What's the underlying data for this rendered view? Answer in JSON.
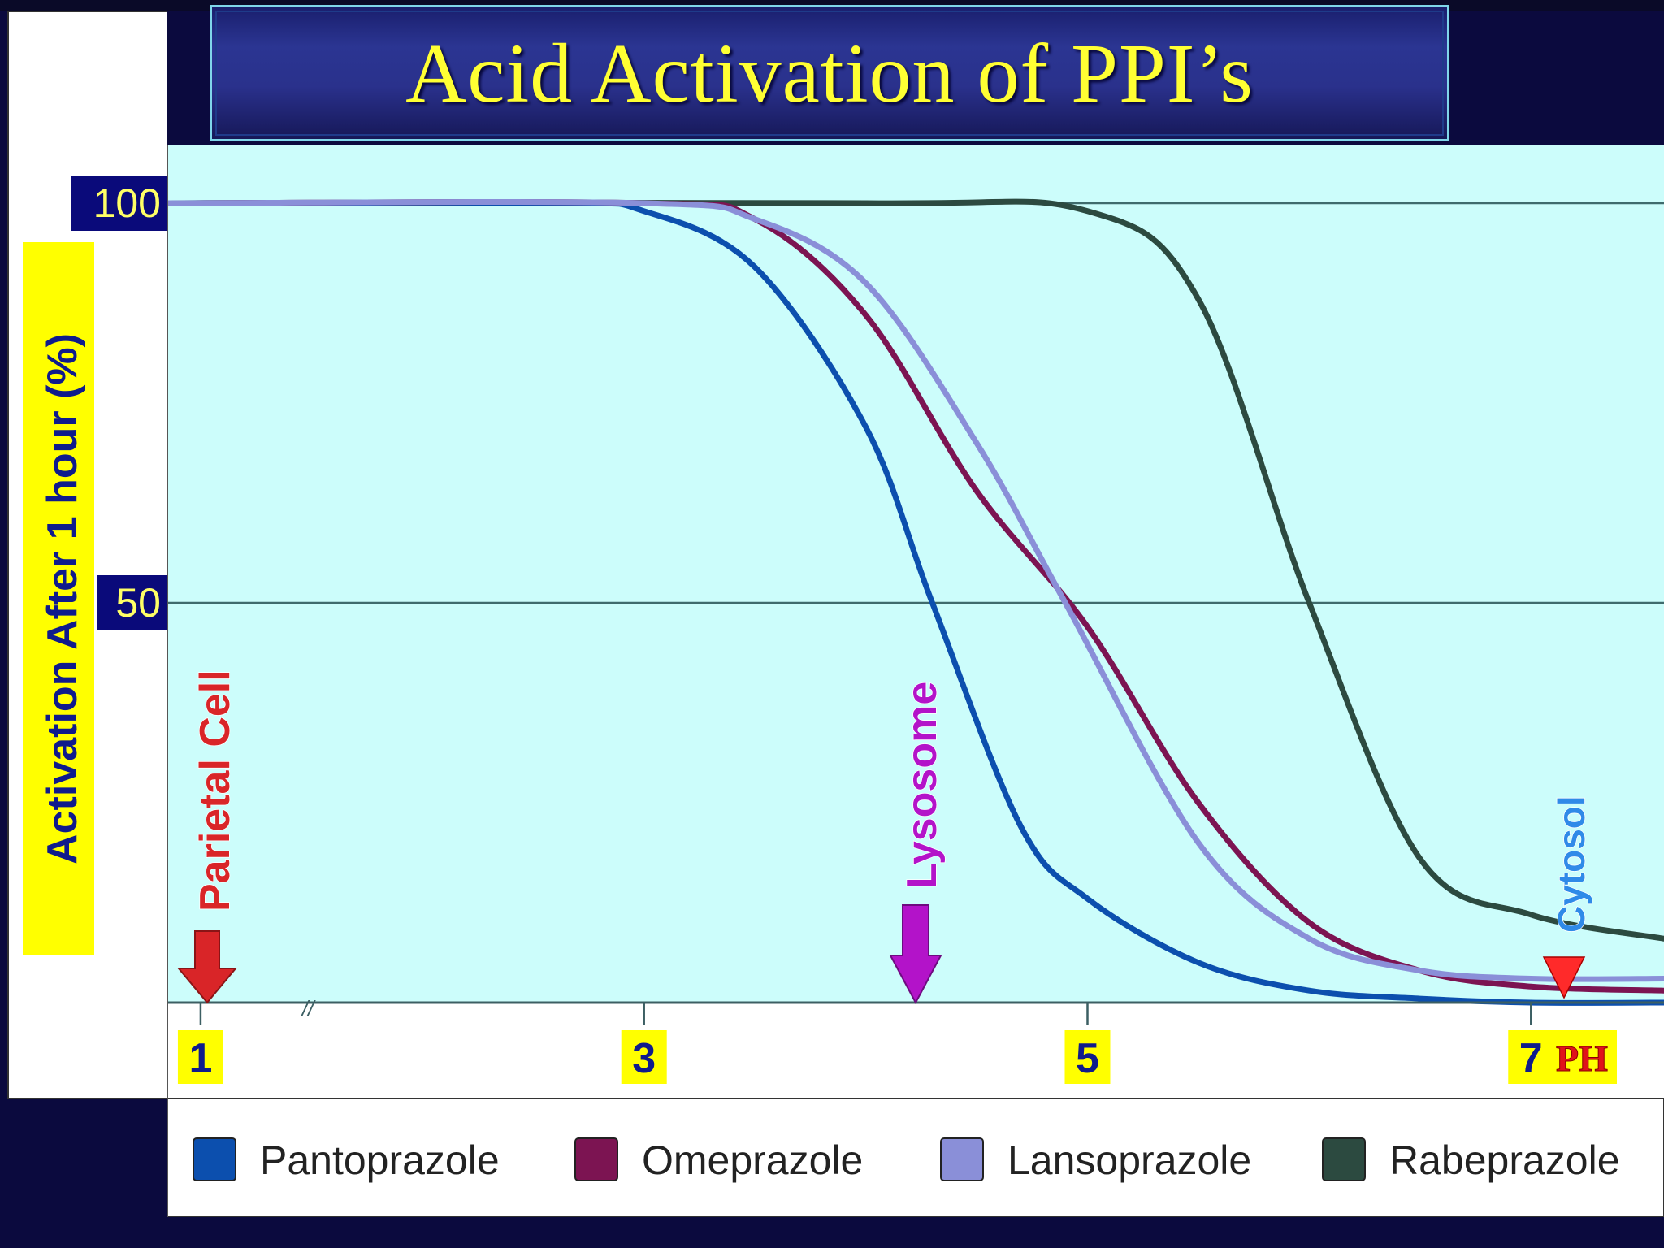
{
  "title": "Acid Activation of PPI’s",
  "chart_data": {
    "type": "line",
    "ylabel": "Activation After 1 hour (%)",
    "xlabel": "PH",
    "y_ticks": [
      {
        "value": 100,
        "label": "100"
      },
      {
        "value": 50,
        "label": "50"
      }
    ],
    "x_ticks": [
      {
        "value": 1,
        "label": "1"
      },
      {
        "value": 3,
        "label": "3"
      },
      {
        "value": 5,
        "label": "5"
      },
      {
        "value": 7,
        "label": "7"
      }
    ],
    "axis_break_symbol": "//",
    "xlim": [
      0.85,
      7.6
    ],
    "ylim": [
      0,
      100
    ],
    "grid_y": true,
    "legend_position": "bottom",
    "series": [
      {
        "name": "Pantoprazole",
        "color": "#0c4fae",
        "x": [
          0.85,
          2.6,
          3.0,
          3.5,
          4.0,
          4.3,
          4.7,
          5.0,
          5.5,
          6.0,
          6.5,
          7.0,
          7.6
        ],
        "y": [
          100,
          100,
          99,
          92,
          72,
          50,
          22,
          13,
          5,
          1.5,
          0.5,
          0,
          0
        ]
      },
      {
        "name": "Omeprazole",
        "color": "#7c1452",
        "x": [
          0.85,
          3.0,
          3.5,
          4.0,
          4.5,
          5.0,
          5.5,
          6.0,
          6.5,
          7.0,
          7.6
        ],
        "y": [
          100,
          100,
          98,
          86,
          64,
          47,
          25,
          10,
          4,
          2,
          1.5
        ]
      },
      {
        "name": "Lansoprazole",
        "color": "#8a8fd8",
        "x": [
          0.85,
          3.0,
          3.5,
          4.0,
          4.5,
          4.9,
          5.5,
          6.0,
          6.5,
          7.0,
          7.6
        ],
        "y": [
          100,
          100,
          98,
          90,
          70,
          50,
          20,
          8,
          4,
          3,
          3
        ]
      },
      {
        "name": "Rabeprazole",
        "color": "#2c4a40",
        "x": [
          0.85,
          4.0,
          5.0,
          5.5,
          6.0,
          6.5,
          7.0,
          7.6
        ],
        "y": [
          100,
          100,
          99,
          88,
          50,
          18,
          11,
          8
        ]
      }
    ],
    "annotations": [
      {
        "label": "Parietal Cell",
        "x": 1,
        "color": "#d92528"
      },
      {
        "label": "Lysosome",
        "x": 4.9,
        "color": "#b313c9"
      },
      {
        "label": "Cytosol",
        "x": 7.4,
        "color": "#2f8ae8"
      }
    ]
  }
}
